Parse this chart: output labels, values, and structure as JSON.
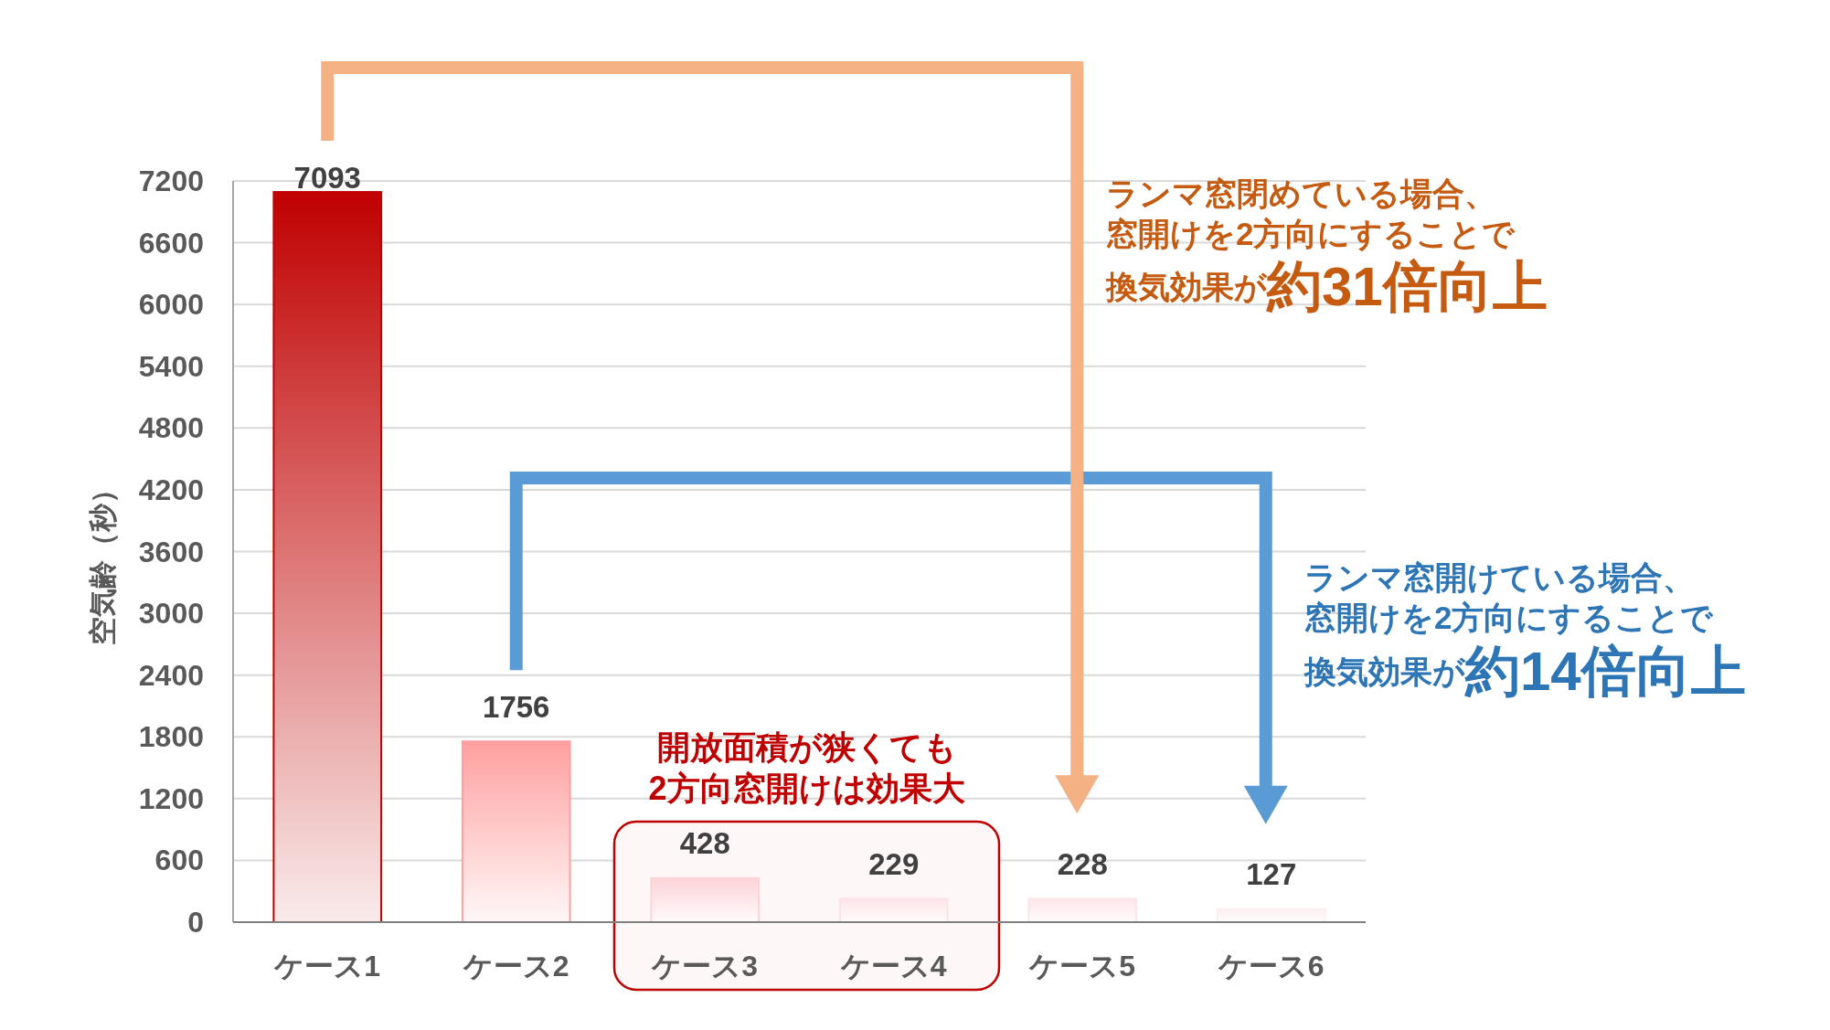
{
  "chart_data": {
    "type": "bar",
    "ylabel": "空気齢（秒）",
    "categories": [
      "ケース1",
      "ケース2",
      "ケース3",
      "ケース4",
      "ケース5",
      "ケース6"
    ],
    "values": [
      7093,
      1756,
      428,
      229,
      228,
      127
    ],
    "colors": [
      "#c00000",
      "#ff9f9f",
      "#fcd3d7",
      "#fde3e6",
      "#fde5e8",
      "#fdeef0"
    ],
    "ylim": [
      0,
      7200
    ],
    "yticks": [
      0,
      600,
      1200,
      1800,
      2400,
      3000,
      3600,
      4200,
      4800,
      5400,
      6000,
      6600,
      7200
    ],
    "grid": "y",
    "data_labels": true,
    "annotations": [
      "ランマ窓閉めている場合、",
      "窓開けを2方向にすることで",
      "換気効果が**約31倍向上**",
      "ランマ窓開けている場合、",
      "窓開けを2方向にすることで",
      "換気効果が**約14倍向上**",
      "開放面積が狭くても",
      "2方向窓開けは効果大"
    ]
  }
}
